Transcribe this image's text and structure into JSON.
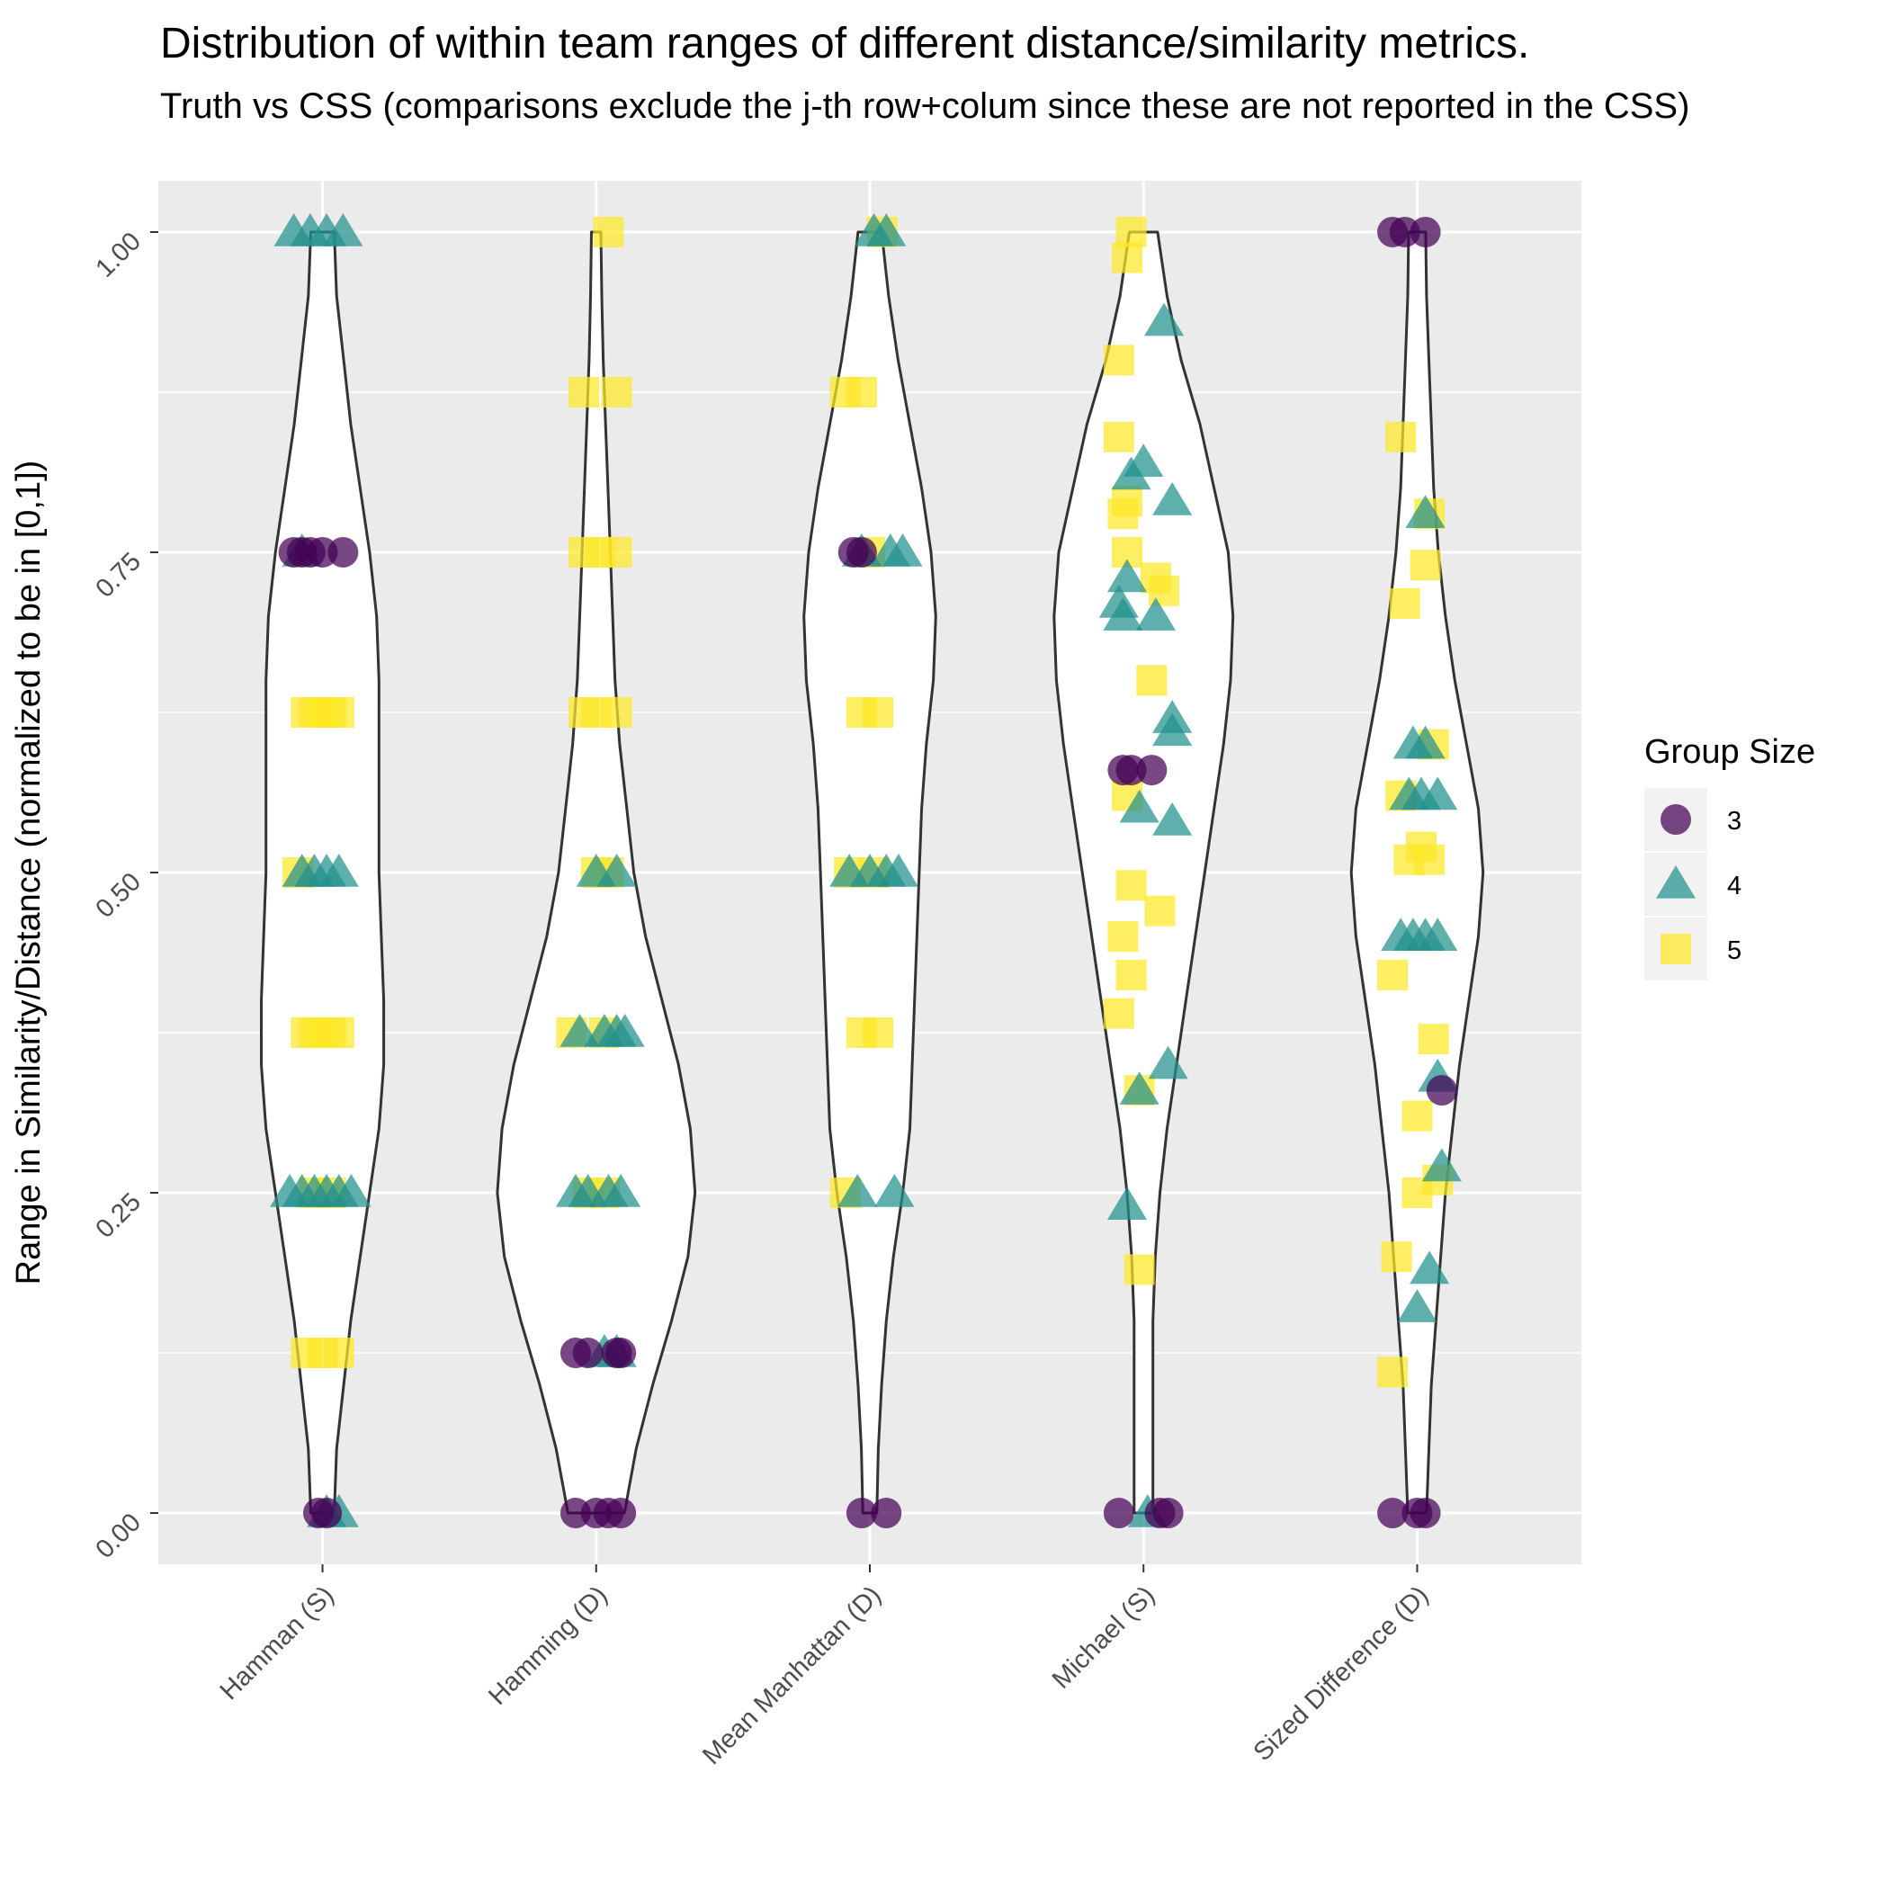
{
  "chart_data": {
    "type": "violin",
    "title": "Distribution of within team ranges of different distance/similarity metrics.",
    "subtitle": "Truth vs CSS (comparisons exclude the j-th row+colum since these are not reported in the CSS)",
    "xlabel": "",
    "ylabel": "Range in Similarity/Distance (normalized to be in [0,1])",
    "ylim": [
      -0.04,
      1.04
    ],
    "y_ticks": [
      "0.00",
      "0.25",
      "0.50",
      "0.75",
      "1.00"
    ],
    "categories": [
      "Hamman (S)",
      "Hamming (D)",
      "Mean Manhattan (D)",
      "Michael (S)",
      "Sized Difference (D)"
    ],
    "grid": true,
    "legend": {
      "title": "Group Size",
      "position": "right",
      "entries": [
        {
          "label": "3",
          "shape": "circle",
          "color": "#440154"
        },
        {
          "label": "4",
          "shape": "triangle",
          "color": "#21908C"
        },
        {
          "label": "5",
          "shape": "square",
          "color": "#FDE725"
        }
      ]
    },
    "violins": [
      {
        "category": "Hamman (S)",
        "profile": [
          [
            0,
            0.025
          ],
          [
            0.05,
            0.03
          ],
          [
            0.1,
            0.045
          ],
          [
            0.15,
            0.06
          ],
          [
            0.2,
            0.08
          ],
          [
            0.25,
            0.1
          ],
          [
            0.3,
            0.12
          ],
          [
            0.35,
            0.13
          ],
          [
            0.4,
            0.13
          ],
          [
            0.45,
            0.125
          ],
          [
            0.5,
            0.12
          ],
          [
            0.55,
            0.12
          ],
          [
            0.6,
            0.12
          ],
          [
            0.65,
            0.12
          ],
          [
            0.7,
            0.115
          ],
          [
            0.75,
            0.1
          ],
          [
            0.8,
            0.08
          ],
          [
            0.85,
            0.06
          ],
          [
            0.9,
            0.045
          ],
          [
            0.95,
            0.03
          ],
          [
            1,
            0.025
          ]
        ]
      },
      {
        "category": "Hamming (D)",
        "profile": [
          [
            0,
            0.06
          ],
          [
            0.05,
            0.085
          ],
          [
            0.1,
            0.12
          ],
          [
            0.15,
            0.16
          ],
          [
            0.2,
            0.195
          ],
          [
            0.25,
            0.21
          ],
          [
            0.3,
            0.2
          ],
          [
            0.35,
            0.175
          ],
          [
            0.4,
            0.14
          ],
          [
            0.45,
            0.105
          ],
          [
            0.5,
            0.08
          ],
          [
            0.55,
            0.065
          ],
          [
            0.6,
            0.05
          ],
          [
            0.65,
            0.04
          ],
          [
            0.7,
            0.035
          ],
          [
            0.75,
            0.03
          ],
          [
            0.8,
            0.025
          ],
          [
            0.85,
            0.02
          ],
          [
            0.9,
            0.015
          ],
          [
            0.95,
            0.012
          ],
          [
            1,
            0.01
          ]
        ]
      },
      {
        "category": "Mean Manhattan (D)",
        "profile": [
          [
            0,
            0.015
          ],
          [
            0.05,
            0.018
          ],
          [
            0.1,
            0.025
          ],
          [
            0.15,
            0.035
          ],
          [
            0.2,
            0.05
          ],
          [
            0.25,
            0.07
          ],
          [
            0.3,
            0.085
          ],
          [
            0.35,
            0.09
          ],
          [
            0.4,
            0.095
          ],
          [
            0.45,
            0.1
          ],
          [
            0.5,
            0.105
          ],
          [
            0.55,
            0.11
          ],
          [
            0.6,
            0.12
          ],
          [
            0.65,
            0.135
          ],
          [
            0.7,
            0.14
          ],
          [
            0.75,
            0.13
          ],
          [
            0.8,
            0.11
          ],
          [
            0.85,
            0.085
          ],
          [
            0.9,
            0.06
          ],
          [
            0.95,
            0.04
          ],
          [
            1,
            0.025
          ]
        ]
      },
      {
        "category": "Michael (S)",
        "profile": [
          [
            0,
            0.02
          ],
          [
            0.05,
            0.02
          ],
          [
            0.1,
            0.02
          ],
          [
            0.15,
            0.02
          ],
          [
            0.2,
            0.025
          ],
          [
            0.25,
            0.035
          ],
          [
            0.3,
            0.05
          ],
          [
            0.35,
            0.07
          ],
          [
            0.4,
            0.09
          ],
          [
            0.45,
            0.11
          ],
          [
            0.5,
            0.13
          ],
          [
            0.55,
            0.15
          ],
          [
            0.6,
            0.17
          ],
          [
            0.65,
            0.185
          ],
          [
            0.7,
            0.19
          ],
          [
            0.75,
            0.18
          ],
          [
            0.8,
            0.15
          ],
          [
            0.85,
            0.12
          ],
          [
            0.9,
            0.08
          ],
          [
            0.95,
            0.05
          ],
          [
            1,
            0.03
          ]
        ]
      },
      {
        "category": "Sized Difference (D)",
        "profile": [
          [
            0,
            0.02
          ],
          [
            0.05,
            0.025
          ],
          [
            0.1,
            0.03
          ],
          [
            0.15,
            0.04
          ],
          [
            0.2,
            0.05
          ],
          [
            0.25,
            0.06
          ],
          [
            0.3,
            0.075
          ],
          [
            0.35,
            0.09
          ],
          [
            0.4,
            0.11
          ],
          [
            0.45,
            0.13
          ],
          [
            0.5,
            0.14
          ],
          [
            0.55,
            0.13
          ],
          [
            0.6,
            0.105
          ],
          [
            0.65,
            0.08
          ],
          [
            0.7,
            0.06
          ],
          [
            0.75,
            0.045
          ],
          [
            0.8,
            0.035
          ],
          [
            0.85,
            0.03
          ],
          [
            0.9,
            0.025
          ],
          [
            0.95,
            0.02
          ],
          [
            1,
            0.018
          ]
        ]
      }
    ],
    "points": [
      {
        "category": "Hamman (S)",
        "group": "5",
        "values": [
          0.125,
          0.125,
          0.125,
          0.375,
          0.375,
          0.375,
          0.375,
          0.375,
          0.5,
          0.625,
          0.625,
          0.625,
          0.625,
          0.625,
          0.25,
          0.25
        ],
        "offsets": [
          -0.04,
          0,
          0.04,
          -0.04,
          -0.02,
          0,
          0.02,
          0.04,
          -0.06,
          -0.04,
          -0.02,
          0,
          0.02,
          0.04,
          -0.02,
          0.02
        ]
      },
      {
        "category": "Hamman (S)",
        "group": "4",
        "values": [
          1,
          1,
          1,
          1,
          0.75,
          0.5,
          0.5,
          0.5,
          0.5,
          0.25,
          0.25,
          0.25,
          0.25,
          0.25,
          0.25,
          0,
          0
        ],
        "offsets": [
          -0.07,
          -0.03,
          0.01,
          0.05,
          -0.05,
          -0.05,
          -0.02,
          0.01,
          0.04,
          -0.08,
          -0.05,
          -0.02,
          0.01,
          0.04,
          0.07,
          0.01,
          0.04
        ]
      },
      {
        "category": "Hamman (S)",
        "group": "3",
        "values": [
          0.75,
          0.75,
          0.75,
          0.75,
          0.75,
          0,
          0
        ],
        "offsets": [
          -0.07,
          -0.05,
          -0.03,
          0,
          0.05,
          -0.01,
          0.01
        ]
      },
      {
        "category": "Hamming (D)",
        "group": "5",
        "values": [
          1,
          0.875,
          0.875,
          0.75,
          0.75,
          0.75,
          0.625,
          0.625,
          0.625,
          0.5,
          0.5,
          0.375,
          0.375,
          0.25,
          0.25
        ],
        "offsets": [
          0.03,
          -0.03,
          0.05,
          -0.03,
          0.01,
          0.05,
          -0.03,
          0,
          0.05,
          0,
          0.03,
          -0.06,
          0.02,
          -0.02,
          0.02
        ]
      },
      {
        "category": "Hamming (D)",
        "group": "4",
        "values": [
          0.5,
          0.5,
          0.375,
          0.375,
          0.375,
          0.375,
          0.25,
          0.25,
          0.25,
          0.25,
          0.125,
          0.125
        ],
        "offsets": [
          0,
          0.05,
          -0.04,
          0.02,
          0.05,
          0.07,
          -0.05,
          -0.02,
          0.03,
          0.06,
          0.02,
          0.05
        ]
      },
      {
        "category": "Hamming (D)",
        "group": "3",
        "values": [
          0.125,
          0.125,
          0.125,
          0.125,
          0,
          0,
          0,
          0
        ],
        "offsets": [
          -0.05,
          -0.02,
          0.05,
          0.06,
          -0.05,
          0,
          0.03,
          0.06
        ]
      },
      {
        "category": "Mean Manhattan (D)",
        "group": "5",
        "values": [
          1,
          0.875,
          0.875,
          0.75,
          0.625,
          0.625,
          0.5,
          0.5,
          0.375,
          0.375,
          0.25
        ],
        "offsets": [
          0.03,
          -0.06,
          -0.02,
          0,
          -0.02,
          0.02,
          -0.05,
          0.01,
          -0.02,
          0.02,
          -0.06
        ]
      },
      {
        "category": "Mean Manhattan (D)",
        "group": "4",
        "values": [
          1,
          1,
          0.75,
          0.75,
          0.75,
          0.5,
          0.5,
          0.5,
          0.5,
          0.25,
          0.25
        ],
        "offsets": [
          0.01,
          0.04,
          -0.02,
          0.05,
          0.08,
          -0.05,
          0,
          0.04,
          0.07,
          -0.03,
          0.06
        ]
      },
      {
        "category": "Mean Manhattan (D)",
        "group": "3",
        "values": [
          0.75,
          0.75,
          0,
          0
        ],
        "offsets": [
          -0.04,
          -0.02,
          -0.02,
          0.04
        ]
      },
      {
        "category": "Michael (S)",
        "group": "5",
        "values": [
          1,
          0.98,
          0.9,
          0.84,
          0.78,
          0.79,
          0.75,
          0.73,
          0.72,
          0.65,
          0.56,
          0.49,
          0.47,
          0.45,
          0.42,
          0.39,
          0.33,
          0.19
        ],
        "offsets": [
          -0.03,
          -0.04,
          -0.06,
          -0.06,
          -0.05,
          -0.04,
          -0.04,
          0.03,
          0.05,
          0.02,
          -0.04,
          -0.03,
          0.04,
          -0.05,
          -0.03,
          -0.06,
          -0.01,
          -0.01
        ]
      },
      {
        "category": "Michael (S)",
        "group": "4",
        "values": [
          0.93,
          0.82,
          0.81,
          0.79,
          0.73,
          0.71,
          0.7,
          0.7,
          0.62,
          0.61,
          0.55,
          0.54,
          0.35,
          0.33,
          0.24,
          0
        ],
        "offsets": [
          0.05,
          0,
          -0.03,
          0.07,
          -0.04,
          -0.06,
          -0.05,
          0.03,
          0.07,
          0.07,
          -0.01,
          0.07,
          0.06,
          -0.01,
          -0.04,
          0.01
        ]
      },
      {
        "category": "Michael (S)",
        "group": "3",
        "values": [
          0.58,
          0.58,
          0.58,
          0,
          0,
          0
        ],
        "offsets": [
          -0.05,
          -0.03,
          0.02,
          -0.06,
          0.04,
          0.06
        ]
      },
      {
        "category": "Sized Difference (D)",
        "group": "5",
        "values": [
          0.84,
          0.78,
          0.74,
          0.71,
          0.6,
          0.56,
          0.52,
          0.51,
          0.51,
          0.42,
          0.37,
          0.31,
          0.26,
          0.25,
          0.2,
          0.11
        ],
        "offsets": [
          -0.04,
          0.03,
          0.02,
          -0.03,
          0.04,
          -0.04,
          0.01,
          -0.02,
          0.03,
          -0.06,
          0.04,
          0,
          0.05,
          0,
          -0.05,
          -0.06
        ]
      },
      {
        "category": "Sized Difference (D)",
        "group": "4",
        "values": [
          0.78,
          0.6,
          0.6,
          0.56,
          0.56,
          0.56,
          0.45,
          0.45,
          0.45,
          0.45,
          0.34,
          0.27,
          0.19,
          0.16
        ],
        "offsets": [
          0.02,
          -0.01,
          0.02,
          -0.02,
          0.01,
          0.05,
          -0.04,
          -0.01,
          0.02,
          0.05,
          0.05,
          0.06,
          0.03,
          0
        ]
      },
      {
        "category": "Sized Difference (D)",
        "group": "3",
        "values": [
          1,
          1,
          1,
          0.33,
          0,
          0,
          0
        ],
        "offsets": [
          -0.06,
          -0.03,
          0.02,
          0.06,
          -0.06,
          0,
          0.02
        ]
      }
    ]
  }
}
